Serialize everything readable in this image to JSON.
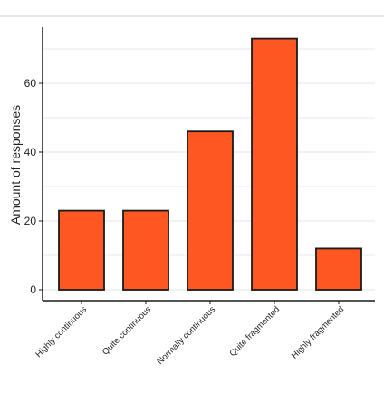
{
  "chart_data": {
    "type": "bar",
    "title": "",
    "xlabel": "",
    "ylabel": "Amount of responses",
    "categories": [
      "Highly continuous",
      "Quite continuous",
      "Normally continuous",
      "Quite fragmented",
      "Highly fragmented"
    ],
    "values": [
      23,
      23,
      46,
      73,
      12
    ],
    "ylim": [
      0,
      73
    ],
    "yticks": [
      0,
      20,
      40,
      60
    ],
    "grid": true,
    "legend": "none",
    "colors": {
      "bar_fill": "#FF5722",
      "bar_stroke": "#1a1a1a",
      "grid": "#e3e3e3",
      "axis": "#1a1a1a"
    }
  }
}
